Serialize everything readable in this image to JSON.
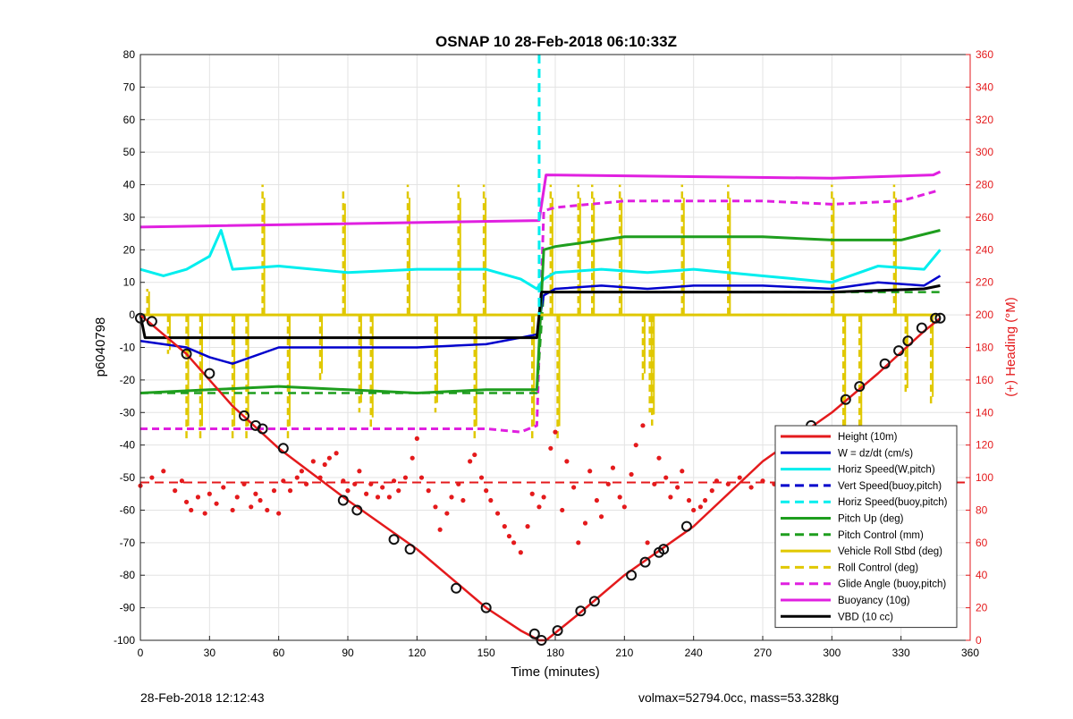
{
  "footer": {
    "left": "28-Feb-2018 12:12:43",
    "right": "volmax=52794.0cc, mass=53.328kg"
  },
  "colors": {
    "height": "#e41a1c",
    "w": "#0000cc",
    "horiz_speed": "#00eeee",
    "vert_speed": "#0000cc",
    "pitch": "#1e9e1e",
    "roll": "#e0c800",
    "glide": "#e020e0",
    "buoyancy": "#e020e0",
    "vbd": "#000000",
    "heading": "#e41a1c"
  },
  "chart_data": {
    "type": "line",
    "title": "OSNAP 10 28-Feb-2018 06:10:33Z",
    "xlabel": "Time (minutes)",
    "ylabel": "p6040798",
    "y2label": "(+) Heading (°M)",
    "xlim": [
      0,
      360
    ],
    "ylim": [
      -100,
      80
    ],
    "y2lim": [
      0,
      360
    ],
    "xticks": [
      "0",
      "30",
      "60",
      "90",
      "120",
      "150",
      "180",
      "210",
      "240",
      "270",
      "300",
      "330",
      "360"
    ],
    "yticks": [
      "80",
      "70",
      "60",
      "50",
      "40",
      "30",
      "20",
      "10",
      "0",
      "-10",
      "-20",
      "-30",
      "-40",
      "-50",
      "-60",
      "-70",
      "-80",
      "-90",
      "-100"
    ],
    "y2ticks": [
      "360",
      "340",
      "320",
      "300",
      "280",
      "260",
      "240",
      "220",
      "200",
      "180",
      "160",
      "140",
      "120",
      "100",
      "80",
      "60",
      "40",
      "20",
      "0"
    ],
    "grid": true,
    "legend_position": "bottom-right",
    "legend": [
      {
        "label": "Height (10m)",
        "color": "#e41a1c",
        "style": "solid"
      },
      {
        "label": "W = dz/dt (cm/s)",
        "color": "#0000cc",
        "style": "solid"
      },
      {
        "label": "Horiz Speed(W,pitch)",
        "color": "#00eeee",
        "style": "solid"
      },
      {
        "label": "Vert Speed(buoy,pitch)",
        "color": "#0000cc",
        "style": "dashed"
      },
      {
        "label": "Horiz Speed(buoy,pitch)",
        "color": "#00eeee",
        "style": "dashed"
      },
      {
        "label": "Pitch Up (deg)",
        "color": "#1e9e1e",
        "style": "solid"
      },
      {
        "label": "Pitch Control (mm)",
        "color": "#1e9e1e",
        "style": "dashed"
      },
      {
        "label": "Vehicle Roll Stbd (deg)",
        "color": "#e0c800",
        "style": "solid"
      },
      {
        "label": "Roll Control (deg)",
        "color": "#e0c800",
        "style": "dashed"
      },
      {
        "label": "Glide Angle (buoy,pitch)",
        "color": "#e020e0",
        "style": "dashed"
      },
      {
        "label": "Buoyancy (10g)",
        "color": "#e020e0",
        "style": "solid"
      },
      {
        "label": "VBD (10 cc)",
        "color": "#000000",
        "style": "solid"
      }
    ],
    "series": [
      {
        "name": "Height (10m)",
        "x": [
          0,
          20,
          40,
          60,
          90,
          120,
          150,
          165,
          173,
          176,
          190,
          210,
          240,
          270,
          300,
          320,
          340,
          347
        ],
        "y": [
          0,
          -12,
          -28,
          -41,
          -57,
          -72,
          -90,
          -97,
          -100,
          -100,
          -92,
          -80,
          -65,
          -45,
          -30,
          -18,
          -5,
          -1
        ]
      },
      {
        "name": "W = dz/dt (cm/s)",
        "x": [
          0,
          10,
          20,
          30,
          40,
          60,
          90,
          120,
          150,
          165,
          172,
          175,
          180,
          200,
          220,
          240,
          270,
          300,
          320,
          340,
          347
        ],
        "y": [
          -8,
          -9,
          -10,
          -13,
          -15,
          -10,
          -10,
          -10,
          -9,
          -7,
          -6,
          6,
          8,
          9,
          8,
          9,
          9,
          8,
          10,
          9,
          12
        ]
      },
      {
        "name": "Horiz Speed(W,pitch)",
        "x": [
          0,
          10,
          20,
          30,
          35,
          40,
          60,
          90,
          120,
          150,
          165,
          172,
          175,
          180,
          200,
          220,
          240,
          270,
          300,
          320,
          340,
          347
        ],
        "y": [
          14,
          12,
          14,
          18,
          26,
          14,
          15,
          13,
          14,
          14,
          11,
          8,
          11,
          13,
          14,
          13,
          14,
          12,
          10,
          15,
          14,
          20
        ]
      },
      {
        "name": "Pitch Up (deg)",
        "x": [
          0,
          30,
          60,
          90,
          120,
          150,
          172,
          175,
          180,
          210,
          240,
          270,
          300,
          330,
          347
        ],
        "y": [
          -24,
          -23,
          -22,
          -23,
          -24,
          -23,
          -23,
          20,
          21,
          24,
          24,
          24,
          23,
          23,
          26
        ]
      },
      {
        "name": "Pitch Control (mm)",
        "x": [
          0,
          172,
          175,
          347
        ],
        "y": [
          -24,
          -24,
          7,
          7
        ]
      },
      {
        "name": "Vehicle Roll Stbd (deg)",
        "x": [
          0,
          90,
          172,
          175,
          220,
          300,
          347
        ],
        "y": [
          0,
          0,
          0,
          0,
          0,
          0,
          0
        ]
      },
      {
        "name": "Roll Control (deg)",
        "x": [
          0,
          172,
          175,
          347
        ],
        "y": [
          0,
          0,
          0,
          0
        ]
      },
      {
        "name": "Glide Angle (buoy,pitch)",
        "x": [
          0,
          30,
          60,
          90,
          120,
          150,
          165,
          172,
          175,
          180,
          210,
          240,
          270,
          300,
          330,
          345
        ],
        "y": [
          -35,
          -35,
          -35,
          -35,
          -35,
          -35,
          -36,
          -34,
          32,
          33,
          35,
          35,
          35,
          34,
          35,
          38
        ]
      },
      {
        "name": "Buoyancy (10g)",
        "x": [
          0,
          173,
          176,
          300,
          344,
          347
        ],
        "y": [
          27,
          29,
          43,
          42,
          43,
          44
        ]
      },
      {
        "name": "VBD (10 cc)",
        "x": [
          0,
          2,
          30,
          172,
          174,
          210,
          270,
          300,
          340,
          347
        ],
        "y": [
          0,
          -7,
          -7,
          -7,
          7,
          7,
          7,
          7,
          8,
          9
        ]
      },
      {
        "name": "Horiz Speed(buoy,pitch)",
        "x": [
          173,
          173
        ],
        "y": [
          80,
          0
        ]
      }
    ],
    "heading_mean": 97,
    "heading_points": {
      "x": [
        0,
        5,
        10,
        15,
        18,
        20,
        22,
        25,
        28,
        30,
        33,
        36,
        40,
        42,
        45,
        48,
        50,
        52,
        55,
        58,
        60,
        62,
        65,
        68,
        70,
        72,
        75,
        78,
        80,
        82,
        85,
        88,
        90,
        93,
        95,
        98,
        100,
        103,
        105,
        108,
        110,
        112,
        115,
        118,
        120,
        122,
        125,
        128,
        130,
        133,
        135,
        138,
        140,
        143,
        145,
        148,
        150,
        152,
        155,
        158,
        160,
        162,
        165,
        168,
        170,
        173,
        175,
        178,
        180,
        183,
        185,
        188,
        190,
        193,
        195,
        198,
        200,
        203,
        205,
        208,
        210,
        213,
        215,
        218,
        220,
        223,
        225,
        228,
        230,
        233,
        235,
        238,
        240,
        243,
        245,
        248,
        250,
        255,
        260,
        265,
        270,
        275,
        280,
        285,
        290,
        295,
        300,
        303,
        305,
        308,
        310,
        313,
        315,
        318,
        320,
        323,
        325,
        328,
        330,
        333,
        335,
        338,
        340,
        343,
        345
      ],
      "y": [
        95,
        100,
        104,
        92,
        98,
        85,
        80,
        88,
        78,
        90,
        84,
        94,
        80,
        88,
        96,
        82,
        90,
        86,
        80,
        92,
        78,
        98,
        92,
        100,
        104,
        96,
        110,
        100,
        108,
        112,
        115,
        98,
        92,
        96,
        104,
        90,
        96,
        88,
        94,
        88,
        98,
        92,
        100,
        112,
        124,
        100,
        92,
        82,
        68,
        78,
        88,
        96,
        86,
        110,
        114,
        100,
        92,
        86,
        78,
        70,
        64,
        60,
        54,
        70,
        90,
        82,
        88,
        118,
        128,
        80,
        110,
        94,
        60,
        72,
        104,
        86,
        76,
        96,
        106,
        88,
        82,
        102,
        120,
        132,
        60,
        96,
        112,
        100,
        88,
        94,
        104,
        86,
        80,
        82,
        86,
        92,
        98,
        96,
        100,
        94,
        98,
        96,
        92,
        94,
        96,
        94,
        98,
        100,
        104,
        96,
        88,
        92,
        100,
        104,
        98,
        106,
        80,
        84,
        98,
        100,
        92,
        104,
        96,
        80,
        48
      ]
    },
    "height_markers": {
      "x": [
        0,
        5,
        20,
        30,
        45,
        50,
        53,
        62,
        88,
        94,
        110,
        117,
        137,
        150,
        171,
        174,
        181,
        191,
        197,
        213,
        219,
        225,
        227,
        237,
        291,
        306,
        312,
        323,
        329,
        333,
        339,
        345,
        347
      ],
      "y": [
        -1,
        -2,
        -12,
        -18,
        -31,
        -34,
        -35,
        -41,
        -57,
        -60,
        -69,
        -72,
        -84,
        -90,
        -98,
        -100,
        -97,
        -91,
        -88,
        -80,
        -76,
        -73,
        -72,
        -65,
        -34,
        -26,
        -22,
        -15,
        -11,
        -8,
        -4,
        -1,
        -1
      ]
    },
    "roll_spikes": [
      {
        "x": 3,
        "y": 8
      },
      {
        "x": 12,
        "y": -12
      },
      {
        "x": 20,
        "y": -38
      },
      {
        "x": 26,
        "y": -38
      },
      {
        "x": 40,
        "y": -38
      },
      {
        "x": 46,
        "y": -38
      },
      {
        "x": 53,
        "y": 40
      },
      {
        "x": 64,
        "y": -38
      },
      {
        "x": 78,
        "y": -20
      },
      {
        "x": 88,
        "y": 38
      },
      {
        "x": 95,
        "y": -30
      },
      {
        "x": 100,
        "y": -35
      },
      {
        "x": 116,
        "y": 40
      },
      {
        "x": 128,
        "y": -30
      },
      {
        "x": 138,
        "y": 40
      },
      {
        "x": 145,
        "y": -38
      },
      {
        "x": 149,
        "y": 40
      },
      {
        "x": 170,
        "y": -38
      },
      {
        "x": 178,
        "y": 40
      },
      {
        "x": 181,
        "y": -38
      },
      {
        "x": 190,
        "y": 40
      },
      {
        "x": 196,
        "y": 40
      },
      {
        "x": 208,
        "y": 40
      },
      {
        "x": 218,
        "y": -20
      },
      {
        "x": 221,
        "y": -30
      },
      {
        "x": 222,
        "y": -34
      },
      {
        "x": 235,
        "y": 40
      },
      {
        "x": 255,
        "y": 40
      },
      {
        "x": 300,
        "y": 40
      },
      {
        "x": 305,
        "y": -38
      },
      {
        "x": 312,
        "y": -38
      },
      {
        "x": 327,
        "y": 40
      },
      {
        "x": 332,
        "y": -25
      },
      {
        "x": 343,
        "y": -28
      }
    ]
  }
}
